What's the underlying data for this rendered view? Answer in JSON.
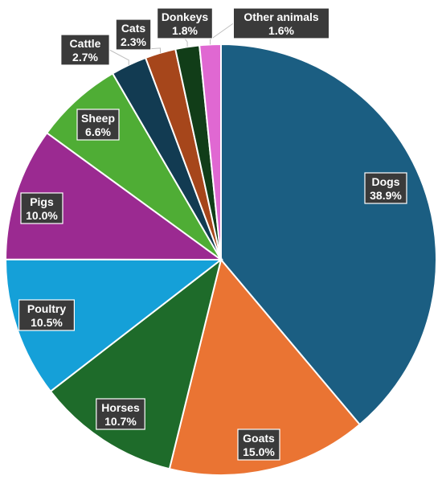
{
  "chart_data": {
    "type": "pie",
    "title": "",
    "categories": [
      "Dogs",
      "Goats",
      "Horses",
      "Poultry",
      "Pigs",
      "Sheep",
      "Cattle",
      "Cats",
      "Donkeys",
      "Other animals"
    ],
    "values": [
      38.9,
      15.0,
      10.7,
      10.5,
      10.0,
      6.6,
      2.7,
      2.3,
      1.8,
      1.6
    ],
    "labels": [
      "38.9%",
      "15.0%",
      "10.7%",
      "10.5%",
      "10.0%",
      "6.6%",
      "2.7%",
      "2.3%",
      "1.8%",
      "1.6%"
    ],
    "colors": [
      "#1b5e82",
      "#ea7433",
      "#1e6b2a",
      "#15a0d8",
      "#9b2a91",
      "#4fad35",
      "#123b52",
      "#a6461b",
      "#113d18",
      "#e068d2"
    ],
    "start": "12 o'clock, clockwise",
    "legend": "none"
  }
}
